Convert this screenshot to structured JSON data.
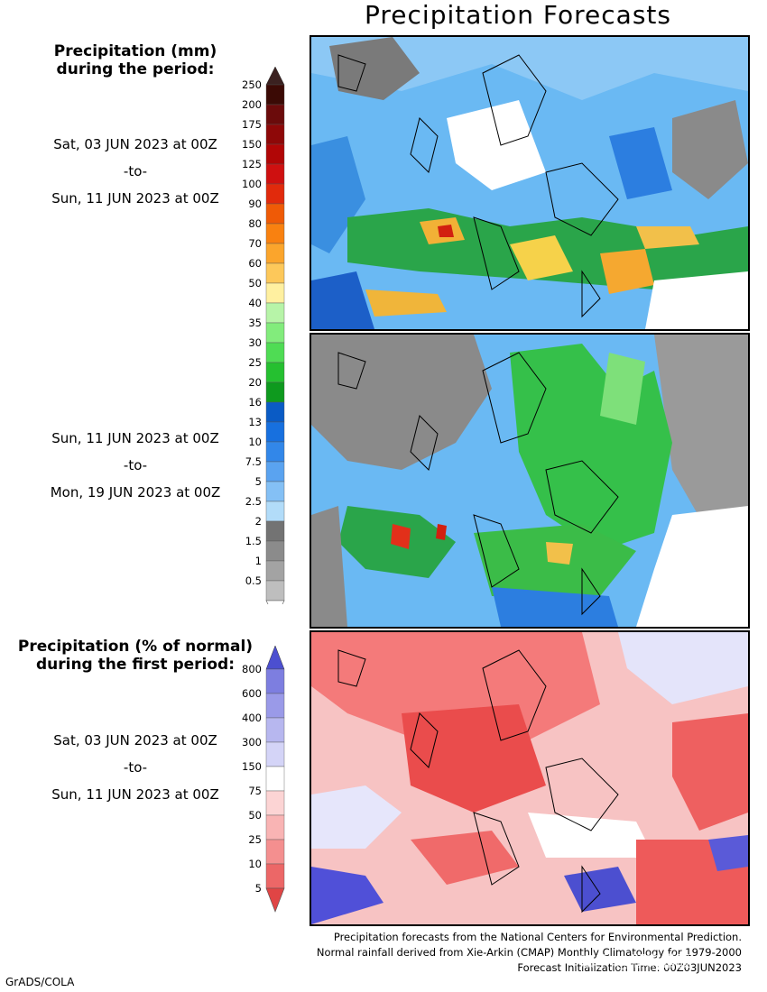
{
  "title": "Precipitation Forecasts",
  "precip_legend": {
    "heading_line1": "Precipitation (mm)",
    "heading_line2": "during the period:",
    "period1": {
      "start": "Sat, 03 JUN 2023 at 00Z",
      "to": "-to-",
      "end": "Sun, 11 JUN 2023 at 00Z"
    },
    "period2": {
      "start": "Sun, 11 JUN 2023 at 00Z",
      "to": "-to-",
      "end": "Mon, 19 JUN 2023 at 00Z"
    },
    "levels": [
      "250",
      "200",
      "175",
      "150",
      "125",
      "100",
      "90",
      "80",
      "70",
      "60",
      "50",
      "40",
      "35",
      "30",
      "25",
      "20",
      "16",
      "13",
      "10",
      "7.5",
      "5",
      "2.5",
      "2",
      "1.5",
      "1",
      "0.5"
    ],
    "band_colors": [
      "#3b0a05",
      "#6b0b0b",
      "#8e0808",
      "#b10606",
      "#cf1010",
      "#e12a0c",
      "#ef5a06",
      "#f98110",
      "#fba52c",
      "#fdc85a",
      "#fff0a0",
      "#b7f4a8",
      "#82ec7c",
      "#4fdc54",
      "#25c030",
      "#0e9a1e",
      "#0a5bc5",
      "#1770df",
      "#3287e9",
      "#5aa3f0",
      "#84c0f5",
      "#b2dcf9",
      "#737373",
      "#8b8b8b",
      "#a3a3a3",
      "#bebebe"
    ],
    "top_arrow_color": "#3b2120"
  },
  "pct_legend": {
    "heading_line1": "Precipitation (% of normal)",
    "heading_line2": "during the first period:",
    "period": {
      "start": "Sat, 03 JUN 2023 at 00Z",
      "to": "-to-",
      "end": "Sun, 11 JUN 2023 at 00Z"
    },
    "levels": [
      "800",
      "600",
      "400",
      "300",
      "150",
      "75",
      "50",
      "25",
      "10",
      "5"
    ],
    "band_colors": [
      "#7d7ee0",
      "#9a9ae8",
      "#b7b7ef",
      "#d4d4f7",
      "#ffffff",
      "#fcd4d4",
      "#f9b4b4",
      "#f48f8f",
      "#ec6767"
    ],
    "top_arrow_color": "#4c4fd0",
    "bottom_arrow_color": "#e04545"
  },
  "maps": {
    "map1_name": "precipitation-map-period-1",
    "map2_name": "precipitation-map-period-2",
    "map3_name": "percent-of-normal-map"
  },
  "footer": {
    "line1": "Precipitation forecasts from the National Centers for Environmental Prediction.",
    "line2": "Normal rainfall derived from Xie-Arkin (CMAP) Monthly Climatology for 1979-2000",
    "line3": "Forecast Initialization Time: 00Z03JUN2023"
  },
  "credit": "GrADS/COLA",
  "watermark": "知乎 @湖南猎股"
}
